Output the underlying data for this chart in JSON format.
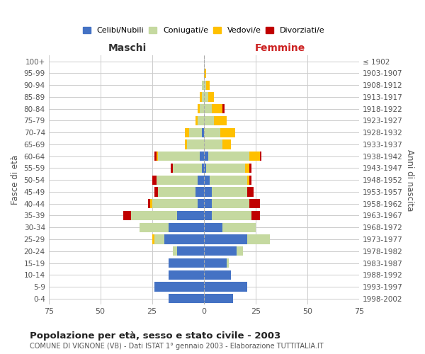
{
  "age_groups": [
    "0-4",
    "5-9",
    "10-14",
    "15-19",
    "20-24",
    "25-29",
    "30-34",
    "35-39",
    "40-44",
    "45-49",
    "50-54",
    "55-59",
    "60-64",
    "65-69",
    "70-74",
    "75-79",
    "80-84",
    "85-89",
    "90-94",
    "95-99",
    "100+"
  ],
  "birth_years": [
    "1998-2002",
    "1993-1997",
    "1988-1992",
    "1983-1987",
    "1978-1982",
    "1973-1977",
    "1968-1972",
    "1963-1967",
    "1958-1962",
    "1953-1957",
    "1948-1952",
    "1943-1947",
    "1938-1942",
    "1933-1937",
    "1928-1932",
    "1923-1927",
    "1918-1922",
    "1913-1917",
    "1908-1912",
    "1903-1907",
    "≤ 1902"
  ],
  "maschi_celibi": [
    17,
    24,
    17,
    17,
    13,
    19,
    17,
    13,
    3,
    4,
    3,
    1,
    2,
    0,
    1,
    0,
    0,
    0,
    0,
    0,
    0
  ],
  "maschi_coniugati": [
    0,
    0,
    0,
    0,
    2,
    5,
    14,
    22,
    22,
    18,
    20,
    14,
    20,
    8,
    6,
    3,
    2,
    1,
    1,
    0,
    0
  ],
  "maschi_vedovi": [
    0,
    0,
    0,
    0,
    0,
    1,
    0,
    0,
    1,
    0,
    0,
    0,
    1,
    1,
    2,
    1,
    1,
    1,
    0,
    0,
    0
  ],
  "maschi_divorziati": [
    0,
    0,
    0,
    0,
    0,
    0,
    0,
    4,
    1,
    2,
    2,
    1,
    1,
    0,
    0,
    0,
    0,
    0,
    0,
    0,
    0
  ],
  "femmine_celibi": [
    14,
    21,
    13,
    11,
    16,
    21,
    9,
    4,
    4,
    4,
    3,
    1,
    2,
    0,
    0,
    0,
    0,
    0,
    0,
    0,
    0
  ],
  "femmine_coniugati": [
    0,
    0,
    0,
    1,
    3,
    11,
    16,
    19,
    18,
    17,
    18,
    19,
    20,
    9,
    8,
    5,
    4,
    2,
    1,
    0,
    0
  ],
  "femmine_vedovi": [
    0,
    0,
    0,
    0,
    0,
    0,
    0,
    0,
    0,
    0,
    1,
    2,
    5,
    4,
    7,
    6,
    5,
    3,
    2,
    1,
    0
  ],
  "femmine_divorziati": [
    0,
    0,
    0,
    0,
    0,
    0,
    0,
    4,
    5,
    3,
    1,
    1,
    1,
    0,
    0,
    0,
    1,
    0,
    0,
    0,
    0
  ],
  "color_celibi": "#4472c4",
  "color_coniugati": "#c5d9a0",
  "color_vedovi": "#ffc000",
  "color_divorziati": "#c00000",
  "title": "Popolazione per età, sesso e stato civile - 2003",
  "subtitle": "COMUNE DI VIGNONE (VB) - Dati ISTAT 1° gennaio 2003 - Elaborazione TUTTITALIA.IT",
  "label_maschi": "Maschi",
  "label_femmine": "Femmine",
  "ylabel_left": "Fasce di età",
  "ylabel_right": "Anni di nascita",
  "xlim": 75,
  "background_color": "#ffffff",
  "grid_color": "#cccccc",
  "legend_labels": [
    "Celibi/Nubili",
    "Coniugati/e",
    "Vedovi/e",
    "Divorziati/e"
  ]
}
